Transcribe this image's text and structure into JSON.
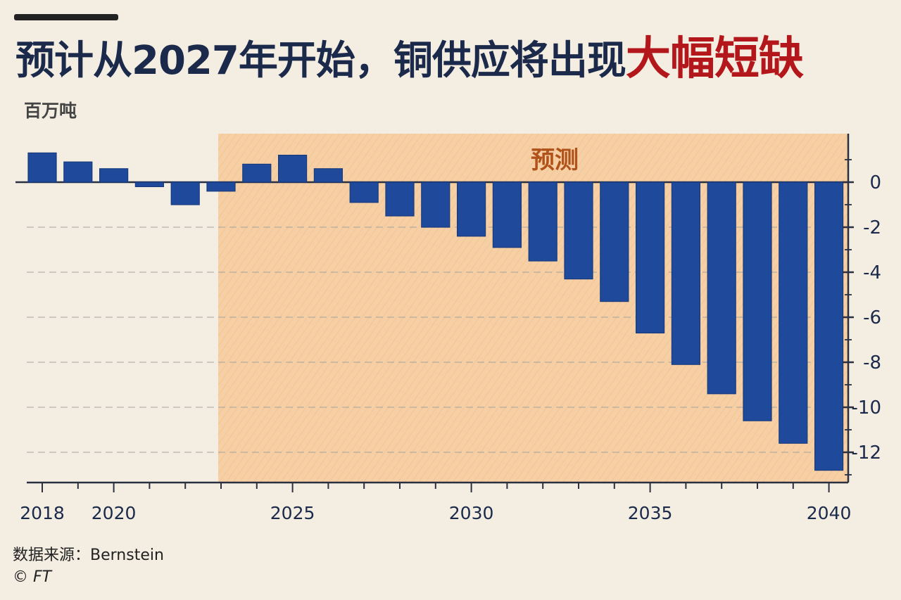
{
  "title": {
    "main": "预计从2027年开始，铜供应将出现",
    "highlight": "大幅短缺"
  },
  "footer": {
    "source": "数据来源：Bernstein",
    "copyright": "© FT"
  },
  "colors": {
    "bar": "#1f4a9c",
    "forecast_band": "#f6c99a",
    "highlight": "#b3171b",
    "axis": "#2b3040"
  },
  "chart_data": {
    "type": "bar",
    "ylabel": "百万吨",
    "forecast_label": "预测",
    "forecast_start": 2023,
    "ylim": [
      -13,
      2.2
    ],
    "yticks": [
      0,
      -2,
      -4,
      -6,
      -8,
      -10,
      -12
    ],
    "ytick_labels": [
      "0",
      "-2",
      "-4",
      "-6",
      "-8",
      "-10",
      "-12"
    ],
    "xtick_labels": [
      "2018",
      "2020",
      "2025",
      "2030",
      "2035",
      "2040"
    ],
    "categories": [
      2018,
      2019,
      2020,
      2021,
      2022,
      2023,
      2024,
      2025,
      2026,
      2027,
      2028,
      2029,
      2030,
      2031,
      2032,
      2033,
      2034,
      2035,
      2036,
      2037,
      2038,
      2039,
      2040
    ],
    "values": [
      1.3,
      0.9,
      0.6,
      -0.2,
      -1.0,
      -0.4,
      0.8,
      1.2,
      0.6,
      -0.9,
      -1.5,
      -2.0,
      -2.4,
      -2.9,
      -3.5,
      -4.3,
      -5.3,
      -6.7,
      -8.1,
      -9.4,
      -10.6,
      -11.6,
      -12.8
    ],
    "grid": "horizontal dashed",
    "legend": "none"
  }
}
